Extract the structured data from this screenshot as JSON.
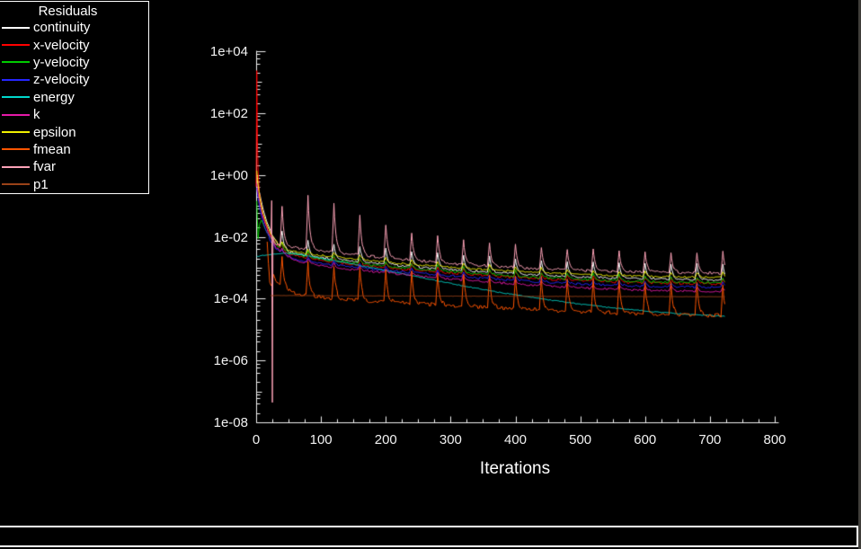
{
  "window": {
    "bg_color": "#000000",
    "right_border_color": "#403e3a",
    "panel_border_color": "#ffffff"
  },
  "legend": {
    "title": "Residuals",
    "items": [
      {
        "label": "continuity",
        "color": "#ffffff"
      },
      {
        "label": "x-velocity",
        "color": "#ff0000"
      },
      {
        "label": "y-velocity",
        "color": "#00cc00"
      },
      {
        "label": "z-velocity",
        "color": "#2626ff"
      },
      {
        "label": "energy",
        "color": "#00d8cc"
      },
      {
        "label": "k",
        "color": "#e61aa8"
      },
      {
        "label": "epsilon",
        "color": "#f0f000"
      },
      {
        "label": "fmean",
        "color": "#ff5500"
      },
      {
        "label": "fvar",
        "color": "#ffa3b8"
      },
      {
        "label": "p1",
        "color": "#994218"
      }
    ]
  },
  "axes": {
    "x": {
      "label": "Iterations",
      "min": 0,
      "max": 800,
      "major_step": 100,
      "minor_step": 25,
      "tick_labels": [
        "0",
        "100",
        "200",
        "300",
        "400",
        "500",
        "600",
        "700",
        "800"
      ]
    },
    "y": {
      "scale": "log10",
      "log_min": -8,
      "log_max": 4,
      "label_every_decades": 2,
      "tick_labels": [
        "1e+04",
        "1e+02",
        "1e+00",
        "1e-02",
        "1e-04",
        "1e-06",
        "1e-08"
      ]
    }
  },
  "chart_data": {
    "type": "line",
    "title": "Residuals",
    "xlabel": "Iterations",
    "x_range": [
      0,
      800
    ],
    "x_end": 723,
    "y_scale": "log10",
    "y_range_log": [
      -8,
      4
    ],
    "grid": false,
    "legend_position": "top-left",
    "spike_positions": [
      40,
      80,
      120,
      160,
      200,
      240,
      280,
      320,
      360,
      400,
      440,
      480,
      520,
      560,
      600,
      640,
      680,
      720
    ],
    "series": [
      {
        "name": "continuity",
        "color": "#ffffff",
        "noise": 0.03,
        "spikes": {
          "delta": 0.5
        },
        "base_points": [
          [
            1,
            -0.04
          ],
          [
            2,
            -0.18
          ],
          [
            4,
            -0.42
          ],
          [
            7,
            -0.78
          ],
          [
            12,
            -1.22
          ],
          [
            18,
            -1.62
          ],
          [
            25,
            -1.98
          ],
          [
            34,
            -2.26
          ],
          [
            50,
            -2.48
          ],
          [
            80,
            -2.62
          ],
          [
            120,
            -2.72
          ],
          [
            180,
            -2.85
          ],
          [
            240,
            -2.97
          ],
          [
            300,
            -3.06
          ],
          [
            360,
            -3.14
          ],
          [
            420,
            -3.22
          ],
          [
            480,
            -3.28
          ],
          [
            540,
            -3.33
          ],
          [
            600,
            -3.36
          ],
          [
            660,
            -3.38
          ],
          [
            723,
            -3.4
          ]
        ]
      },
      {
        "name": "x-velocity",
        "color": "#ff0000",
        "noise": 0.035,
        "spikes": {
          "delta": 0.18
        },
        "base_points": [
          [
            0,
            -0.35
          ],
          [
            1,
            3.4
          ],
          [
            2,
            1.1
          ],
          [
            3,
            0.1
          ],
          [
            5,
            -0.6
          ],
          [
            8,
            -1.0
          ],
          [
            12,
            -1.4
          ],
          [
            18,
            -1.78
          ],
          [
            25,
            -2.08
          ],
          [
            34,
            -2.3
          ],
          [
            50,
            -2.56
          ],
          [
            80,
            -2.7
          ],
          [
            120,
            -2.82
          ],
          [
            180,
            -2.96
          ],
          [
            240,
            -3.07
          ],
          [
            300,
            -3.17
          ],
          [
            360,
            -3.26
          ],
          [
            420,
            -3.34
          ],
          [
            480,
            -3.4
          ],
          [
            540,
            -3.45
          ],
          [
            600,
            -3.49
          ],
          [
            660,
            -3.51
          ],
          [
            723,
            -3.53
          ]
        ]
      },
      {
        "name": "y-velocity",
        "color": "#00cc00",
        "noise": 0.035,
        "spikes": {
          "delta": 0.18
        },
        "base_points": [
          [
            1,
            -0.85
          ],
          [
            2,
            -1.5
          ],
          [
            3,
            -2.05
          ],
          [
            5,
            -1.62
          ],
          [
            8,
            -1.48
          ],
          [
            12,
            -1.62
          ],
          [
            18,
            -1.88
          ],
          [
            25,
            -2.1
          ],
          [
            34,
            -2.32
          ],
          [
            50,
            -2.52
          ],
          [
            80,
            -2.67
          ],
          [
            120,
            -2.78
          ],
          [
            180,
            -2.92
          ],
          [
            240,
            -3.03
          ],
          [
            300,
            -3.13
          ],
          [
            360,
            -3.22
          ],
          [
            420,
            -3.3
          ],
          [
            480,
            -3.36
          ],
          [
            540,
            -3.41
          ],
          [
            600,
            -3.45
          ],
          [
            660,
            -3.47
          ],
          [
            723,
            -3.49
          ]
        ]
      },
      {
        "name": "z-velocity",
        "color": "#2626ff",
        "noise": 0.03,
        "spikes": {
          "delta": 0.15
        },
        "base_points": [
          [
            1,
            -0.4
          ],
          [
            3,
            -0.75
          ],
          [
            6,
            -1.1
          ],
          [
            10,
            -1.45
          ],
          [
            15,
            -1.8
          ],
          [
            22,
            -2.12
          ],
          [
            30,
            -2.38
          ],
          [
            42,
            -2.58
          ],
          [
            60,
            -2.72
          ],
          [
            90,
            -2.84
          ],
          [
            130,
            -2.94
          ],
          [
            190,
            -3.07
          ],
          [
            250,
            -3.18
          ],
          [
            310,
            -3.28
          ],
          [
            370,
            -3.37
          ],
          [
            430,
            -3.45
          ],
          [
            490,
            -3.52
          ],
          [
            550,
            -3.57
          ],
          [
            610,
            -3.61
          ],
          [
            660,
            -3.62
          ],
          [
            723,
            -3.64
          ]
        ]
      },
      {
        "name": "energy",
        "color": "#00d8cc",
        "noise": 0.012,
        "base_points": [
          [
            1,
            -2.64
          ],
          [
            10,
            -2.6
          ],
          [
            25,
            -2.56
          ],
          [
            45,
            -2.53
          ],
          [
            70,
            -2.58
          ],
          [
            100,
            -2.7
          ],
          [
            140,
            -2.85
          ],
          [
            190,
            -3.05
          ],
          [
            250,
            -3.3
          ],
          [
            310,
            -3.55
          ],
          [
            370,
            -3.78
          ],
          [
            430,
            -3.98
          ],
          [
            490,
            -4.15
          ],
          [
            550,
            -4.3
          ],
          [
            610,
            -4.42
          ],
          [
            660,
            -4.5
          ],
          [
            723,
            -4.57
          ]
        ]
      },
      {
        "name": "k",
        "color": "#e61aa8",
        "noise": 0.03,
        "spikes": {
          "delta": 0.15
        },
        "base_points": [
          [
            1,
            -0.3
          ],
          [
            3,
            -0.62
          ],
          [
            6,
            -0.95
          ],
          [
            10,
            -1.3
          ],
          [
            15,
            -1.66
          ],
          [
            22,
            -2.02
          ],
          [
            30,
            -2.32
          ],
          [
            42,
            -2.58
          ],
          [
            60,
            -2.76
          ],
          [
            90,
            -2.9
          ],
          [
            130,
            -3.02
          ],
          [
            190,
            -3.15
          ],
          [
            250,
            -3.27
          ],
          [
            310,
            -3.38
          ],
          [
            370,
            -3.48
          ],
          [
            430,
            -3.57
          ],
          [
            490,
            -3.64
          ],
          [
            550,
            -3.7
          ],
          [
            610,
            -3.74
          ],
          [
            660,
            -3.75
          ],
          [
            723,
            -3.77
          ]
        ]
      },
      {
        "name": "epsilon",
        "color": "#f0f000",
        "noise": 0.025,
        "spikes": {
          "delta": 0.15
        },
        "base_points": [
          [
            1,
            0.15
          ],
          [
            3,
            -0.35
          ],
          [
            6,
            -0.8
          ],
          [
            10,
            -1.2
          ],
          [
            16,
            -1.6
          ],
          [
            24,
            -1.96
          ],
          [
            34,
            -2.22
          ],
          [
            50,
            -2.44
          ],
          [
            80,
            -2.56
          ],
          [
            120,
            -2.65
          ],
          [
            180,
            -2.78
          ],
          [
            240,
            -2.9
          ],
          [
            300,
            -2.99
          ],
          [
            360,
            -3.07
          ],
          [
            420,
            -3.14
          ],
          [
            480,
            -3.2
          ],
          [
            540,
            -3.25
          ],
          [
            600,
            -3.28
          ],
          [
            660,
            -3.3
          ],
          [
            723,
            -3.31
          ]
        ]
      },
      {
        "name": "fmean",
        "color": "#ff5500",
        "noise": 0.06,
        "spikes": {
          "delta": 1.05
        },
        "base_points": [
          [
            17,
            -2.2
          ],
          [
            19,
            -2.9
          ],
          [
            21,
            -3.45
          ],
          [
            24,
            -3.6
          ],
          [
            27,
            -3.2
          ],
          [
            30,
            -3.38
          ],
          [
            34,
            -3.52
          ],
          [
            40,
            -3.64
          ],
          [
            50,
            -3.74
          ],
          [
            65,
            -3.84
          ],
          [
            85,
            -3.92
          ],
          [
            110,
            -3.98
          ],
          [
            150,
            -4.04
          ],
          [
            200,
            -4.1
          ],
          [
            260,
            -4.17
          ],
          [
            320,
            -4.24
          ],
          [
            380,
            -4.3
          ],
          [
            440,
            -4.36
          ],
          [
            500,
            -4.42
          ],
          [
            560,
            -4.46
          ],
          [
            620,
            -4.5
          ],
          [
            723,
            -4.55
          ]
        ]
      },
      {
        "name": "fvar",
        "color": "#ffa3b8",
        "noise": 0.04,
        "spikes": {
          "peaks": [
            -1.05,
            -0.62,
            -0.95,
            -1.3,
            -1.6,
            -1.85,
            -2.0,
            -2.1,
            -2.18,
            -2.25,
            -2.32,
            -2.38,
            -2.42,
            -2.45,
            -2.47,
            -2.48,
            -2.5,
            -2.5
          ]
        },
        "base_points": [
          [
            23,
            -1.9
          ],
          [
            24,
            -0.82
          ],
          [
            25,
            -7.35
          ],
          [
            26,
            -2.0
          ],
          [
            28,
            -2.2
          ],
          [
            40,
            -2.28
          ],
          [
            60,
            -2.35
          ],
          [
            90,
            -2.42
          ],
          [
            130,
            -2.52
          ],
          [
            180,
            -2.64
          ],
          [
            240,
            -2.76
          ],
          [
            300,
            -2.86
          ],
          [
            360,
            -2.94
          ],
          [
            420,
            -3.01
          ],
          [
            480,
            -3.07
          ],
          [
            540,
            -3.11
          ],
          [
            600,
            -3.14
          ],
          [
            660,
            -3.16
          ],
          [
            723,
            -3.18
          ]
        ]
      },
      {
        "name": "p1",
        "color": "#994218",
        "noise": 0.004,
        "base_points": [
          [
            22,
            -3.9
          ],
          [
            300,
            -3.92
          ],
          [
            723,
            -3.94
          ]
        ]
      }
    ]
  }
}
